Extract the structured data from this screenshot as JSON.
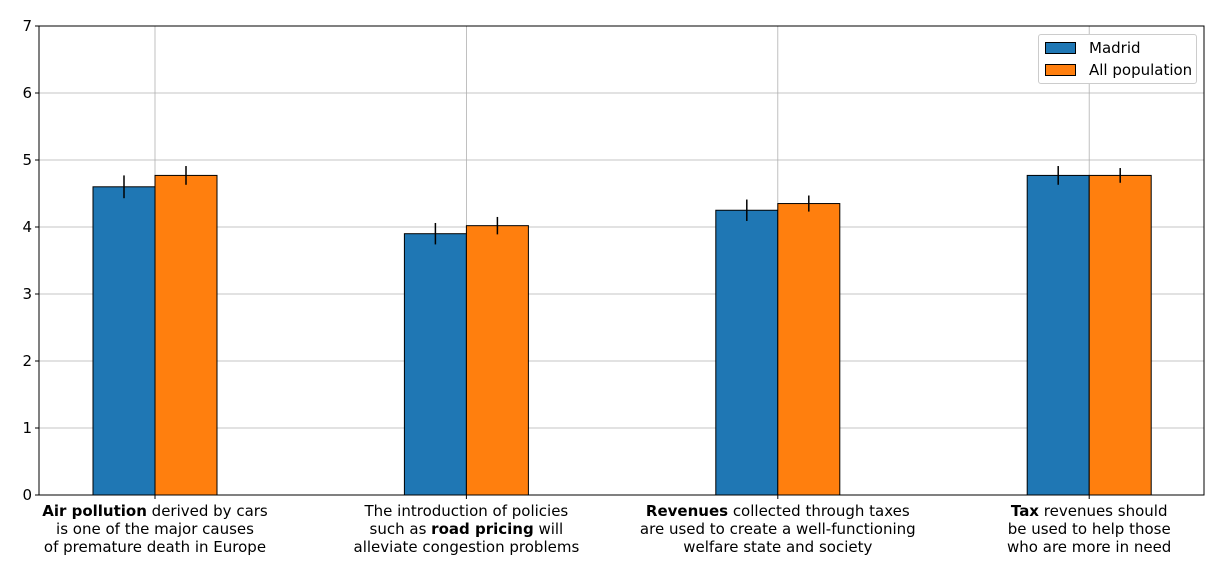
{
  "chart_data": {
    "type": "bar",
    "categories": [
      [
        {
          "t": "Air pollution",
          "b": true
        },
        {
          "t": " derived by cars\nis one of the major causes\nof premature death in Europe",
          "b": false
        }
      ],
      [
        {
          "t": "The introduction of policies\nsuch as ",
          "b": false
        },
        {
          "t": "road pricing",
          "b": true
        },
        {
          "t": " will\nalleviate congestion problems",
          "b": false
        }
      ],
      [
        {
          "t": "Revenues",
          "b": true
        },
        {
          "t": " collected through taxes\nare used to create a well-functioning\nwelfare state and society",
          "b": false
        }
      ],
      [
        {
          "t": "Tax",
          "b": true
        },
        {
          "t": " revenues should\nbe used to help those\nwho are more in need",
          "b": false
        }
      ]
    ],
    "series": [
      {
        "name": "Madrid",
        "color": "#1f77b4",
        "values": [
          4.6,
          3.9,
          4.25,
          4.77
        ],
        "errors": [
          0.17,
          0.16,
          0.16,
          0.14
        ]
      },
      {
        "name": "All population",
        "color": "#ff7f0e",
        "values": [
          4.77,
          4.02,
          4.35,
          4.77
        ],
        "errors": [
          0.14,
          0.13,
          0.12,
          0.11
        ]
      }
    ],
    "ylim": [
      0,
      7
    ],
    "yticks": [
      "0",
      "1",
      "2",
      "3",
      "4",
      "5",
      "6",
      "7"
    ],
    "grid": true,
    "legend_position": "top-right",
    "title": "",
    "xlabel": "",
    "ylabel": ""
  }
}
